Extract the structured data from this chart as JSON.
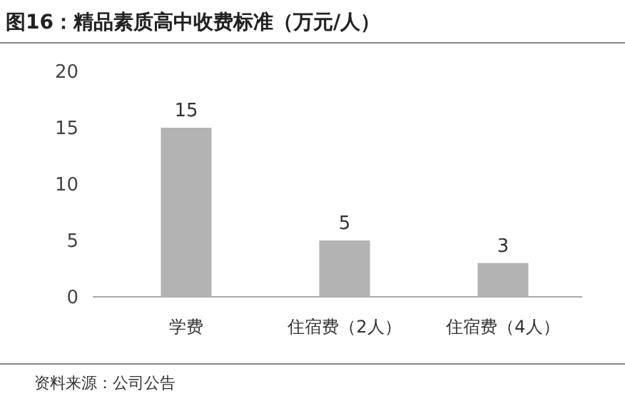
{
  "chart_data": {
    "type": "bar",
    "title": "图16：精品素质高中收费标准（万元/人）",
    "categories": [
      "学费",
      "住宿费（2人）",
      "住宿费（4人）"
    ],
    "values": [
      15,
      5,
      3
    ],
    "color": "#b3b3b3",
    "ylim": [
      0,
      20
    ],
    "yticks": [
      0,
      5,
      10,
      15,
      20
    ],
    "data_labels": true,
    "annotations": [
      "资料来源：公司公告"
    ]
  }
}
